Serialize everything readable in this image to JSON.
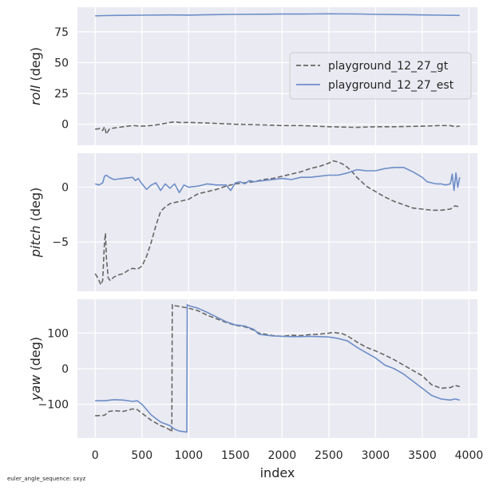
{
  "footnote": "euler_angle_sequence: sxyz",
  "colors": {
    "panel_bg": "#eaeaf2",
    "grid": "#ffffff",
    "gt": "#666666",
    "est": "#6d8ec8"
  },
  "chart_data": [
    {
      "type": "line",
      "ylabel_italic": "roll",
      "ylabel_unit": " (deg)",
      "xlim": [
        -190,
        4090
      ],
      "ylim": [
        -17,
        95
      ],
      "yticks": [
        0,
        25,
        50,
        75
      ],
      "grid": true,
      "legend": {
        "placement": "center-right",
        "entries": [
          "playground_12_27_gt",
          "playground_12_27_est"
        ]
      },
      "series": [
        {
          "name": "playground_12_27_gt",
          "style": "dashed",
          "x": [
            0,
            50,
            80,
            100,
            120,
            150,
            200,
            300,
            400,
            500,
            600,
            700,
            800,
            850,
            900,
            1000,
            1200,
            1500,
            1800,
            2000,
            2200,
            2500,
            2800,
            3000,
            3200,
            3500,
            3700,
            3800,
            3850,
            3900
          ],
          "y": [
            -4,
            -3.5,
            -5,
            -2,
            -8,
            -4,
            -3,
            -2,
            -1,
            -1.5,
            -1,
            0,
            1.5,
            2,
            1.5,
            1.5,
            1,
            0,
            -0.5,
            -1,
            -1,
            -2,
            -2.5,
            -2,
            -2,
            -1.5,
            -1,
            -1,
            -2,
            -1.5
          ]
        },
        {
          "name": "playground_12_27_est",
          "style": "solid",
          "x": [
            0,
            200,
            500,
            800,
            1000,
            1300,
            1500,
            1800,
            2000,
            2300,
            2500,
            2800,
            3000,
            3300,
            3500,
            3700,
            3900
          ],
          "y": [
            88,
            88.3,
            88.5,
            88.7,
            88.6,
            89,
            89.2,
            89.3,
            89.4,
            89.5,
            89.6,
            89.5,
            89.2,
            89,
            88.7,
            88.5,
            88.3
          ]
        }
      ]
    },
    {
      "type": "line",
      "ylabel_italic": "pitch",
      "ylabel_unit": " (deg)",
      "xlim": [
        -190,
        4090
      ],
      "ylim": [
        -9.5,
        3.1
      ],
      "yticks": [
        -5,
        0
      ],
      "grid": true,
      "series": [
        {
          "name": "playground_12_27_gt",
          "style": "dashed",
          "x": [
            0,
            30,
            60,
            80,
            100,
            110,
            120,
            140,
            160,
            200,
            250,
            300,
            350,
            400,
            450,
            500,
            550,
            600,
            650,
            700,
            750,
            800,
            900,
            1000,
            1100,
            1200,
            1300,
            1400,
            1500,
            1600,
            1700,
            1800,
            1900,
            2000,
            2100,
            2200,
            2300,
            2400,
            2500,
            2550,
            2600,
            2650,
            2700,
            2750,
            2800,
            2850,
            2900,
            3000,
            3100,
            3200,
            3300,
            3400,
            3500,
            3600,
            3700,
            3800,
            3850,
            3900
          ],
          "y": [
            -7.9,
            -8.3,
            -8.9,
            -8.5,
            -5,
            -4.2,
            -6.5,
            -8.3,
            -8.5,
            -8.2,
            -8,
            -7.9,
            -7.6,
            -7.4,
            -7.5,
            -7.2,
            -6.3,
            -5,
            -3.5,
            -2.2,
            -1.8,
            -1.5,
            -1.3,
            -1.1,
            -0.6,
            -0.4,
            -0.2,
            0.1,
            0.3,
            0.4,
            0.5,
            0.7,
            0.8,
            1.0,
            1.2,
            1.4,
            1.7,
            1.9,
            2.2,
            2.4,
            2.3,
            2.1,
            1.8,
            1.4,
            0.9,
            0.5,
            0.1,
            -0.4,
            -0.9,
            -1.3,
            -1.6,
            -1.9,
            -2.0,
            -2.1,
            -2.1,
            -2.0,
            -1.7,
            -1.8
          ]
        },
        {
          "name": "playground_12_27_est",
          "style": "solid",
          "x": [
            0,
            40,
            80,
            100,
            120,
            150,
            200,
            300,
            400,
            430,
            460,
            500,
            550,
            600,
            650,
            700,
            750,
            800,
            850,
            900,
            950,
            1000,
            1100,
            1200,
            1300,
            1400,
            1450,
            1500,
            1550,
            1600,
            1650,
            1700,
            1800,
            1900,
            2000,
            2100,
            2200,
            2300,
            2400,
            2500,
            2600,
            2700,
            2800,
            2900,
            3000,
            3100,
            3200,
            3300,
            3400,
            3500,
            3550,
            3600,
            3650,
            3700,
            3750,
            3800,
            3820,
            3840,
            3860,
            3880,
            3900
          ],
          "y": [
            0.3,
            0.2,
            0.4,
            1.0,
            1.1,
            0.9,
            0.7,
            0.8,
            0.9,
            0.6,
            0.8,
            0.3,
            -0.2,
            0.2,
            0.4,
            -0.3,
            0.3,
            -0.1,
            0.3,
            -0.5,
            0.2,
            0.0,
            0.1,
            0.3,
            0.2,
            0.2,
            -0.3,
            0.4,
            0.5,
            0.3,
            0.6,
            0.5,
            0.6,
            0.7,
            0.8,
            0.7,
            0.9,
            0.9,
            1.0,
            1.1,
            1.1,
            1.3,
            1.6,
            1.5,
            1.5,
            1.7,
            1.8,
            1.8,
            1.4,
            0.9,
            0.5,
            0.4,
            0.3,
            0.3,
            0.2,
            0.3,
            1.2,
            -0.3,
            1.3,
            0.0,
            0.9
          ]
        }
      ]
    },
    {
      "type": "line",
      "ylabel_italic": "yaw",
      "ylabel_unit": " (deg)",
      "xlabel": "index",
      "xlim": [
        -190,
        4090
      ],
      "ylim": [
        -195,
        195
      ],
      "xticks": [
        0,
        500,
        1000,
        1500,
        2000,
        2500,
        3000,
        3500,
        4000
      ],
      "yticks": [
        -100,
        0,
        100
      ],
      "grid": true,
      "series": [
        {
          "name": "playground_12_27_gt",
          "style": "dashed",
          "x": [
            0,
            100,
            150,
            200,
            300,
            400,
            450,
            500,
            600,
            700,
            750,
            800,
            820,
            825,
            850,
            900,
            1000,
            1100,
            1200,
            1300,
            1400,
            1500,
            1600,
            1700,
            1750,
            1800,
            1900,
            2000,
            2100,
            2200,
            2300,
            2400,
            2500,
            2550,
            2600,
            2650,
            2700,
            2800,
            2900,
            3000,
            3100,
            3200,
            3300,
            3400,
            3500,
            3600,
            3700,
            3800,
            3850,
            3900
          ],
          "y": [
            -132,
            -131,
            -120,
            -118,
            -120,
            -113,
            -115,
            -125,
            -145,
            -160,
            -165,
            -172,
            -178,
            180,
            177,
            175,
            170,
            163,
            150,
            140,
            130,
            122,
            118,
            108,
            100,
            98,
            93,
            91,
            94,
            93,
            96,
            97,
            100,
            102,
            100,
            98,
            92,
            75,
            60,
            50,
            38,
            25,
            10,
            -5,
            -20,
            -45,
            -55,
            -53,
            -47,
            -50
          ]
        },
        {
          "name": "playground_12_27_est",
          "style": "solid",
          "x": [
            0,
            100,
            200,
            300,
            400,
            450,
            500,
            600,
            700,
            800,
            850,
            900,
            980,
            985,
            1000,
            1100,
            1200,
            1300,
            1400,
            1500,
            1600,
            1700,
            1750,
            1800,
            1900,
            2000,
            2100,
            2200,
            2300,
            2400,
            2500,
            2600,
            2700,
            2800,
            2900,
            3000,
            3100,
            3200,
            3300,
            3400,
            3500,
            3600,
            3700,
            3800,
            3850,
            3900
          ],
          "y": [
            -90,
            -90,
            -87,
            -88,
            -92,
            -90,
            -100,
            -130,
            -150,
            -160,
            -170,
            -175,
            -178,
            180,
            177,
            170,
            158,
            145,
            132,
            123,
            120,
            110,
            97,
            95,
            92,
            91,
            90,
            90,
            91,
            90,
            89,
            85,
            78,
            60,
            45,
            30,
            10,
            0,
            -15,
            -35,
            -55,
            -75,
            -85,
            -88,
            -85,
            -88
          ]
        }
      ]
    }
  ]
}
